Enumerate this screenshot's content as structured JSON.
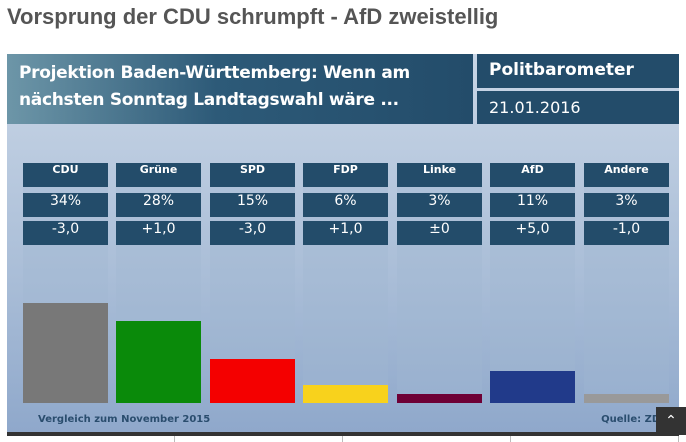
{
  "headline": "Vorsprung der CDU schrumpft - AfD zweistellig",
  "header": {
    "title_line1": "Projektion Baden-Württemberg: Wenn am",
    "title_line2": "nächsten Sonntag Landtagswahl wäre ...",
    "brand": "Politbarometer",
    "date": "21.01.2016"
  },
  "chart_data": {
    "type": "bar",
    "categories": [
      "CDU",
      "Grüne",
      "SPD",
      "FDP",
      "Linke",
      "AfD",
      "Andere"
    ],
    "values": [
      34,
      28,
      15,
      6,
      3,
      11,
      3
    ],
    "value_labels": [
      "34%",
      "28%",
      "15%",
      "6%",
      "3%",
      "11%",
      "3%"
    ],
    "changes": [
      "-3,0",
      "+1,0",
      "-3,0",
      "+1,0",
      "±0",
      "+5,0",
      "-1,0"
    ],
    "colors": [
      "#787878",
      "#0a8a0a",
      "#f40000",
      "#f8d21c",
      "#6e0035",
      "#213a8a",
      "#999999"
    ],
    "ylim": [
      0,
      34
    ]
  },
  "footer": {
    "comparison": "Vergleich zum November 2015",
    "source": "Quelle: ZDF"
  },
  "scroll_top_icon": "chevron-up-icon"
}
